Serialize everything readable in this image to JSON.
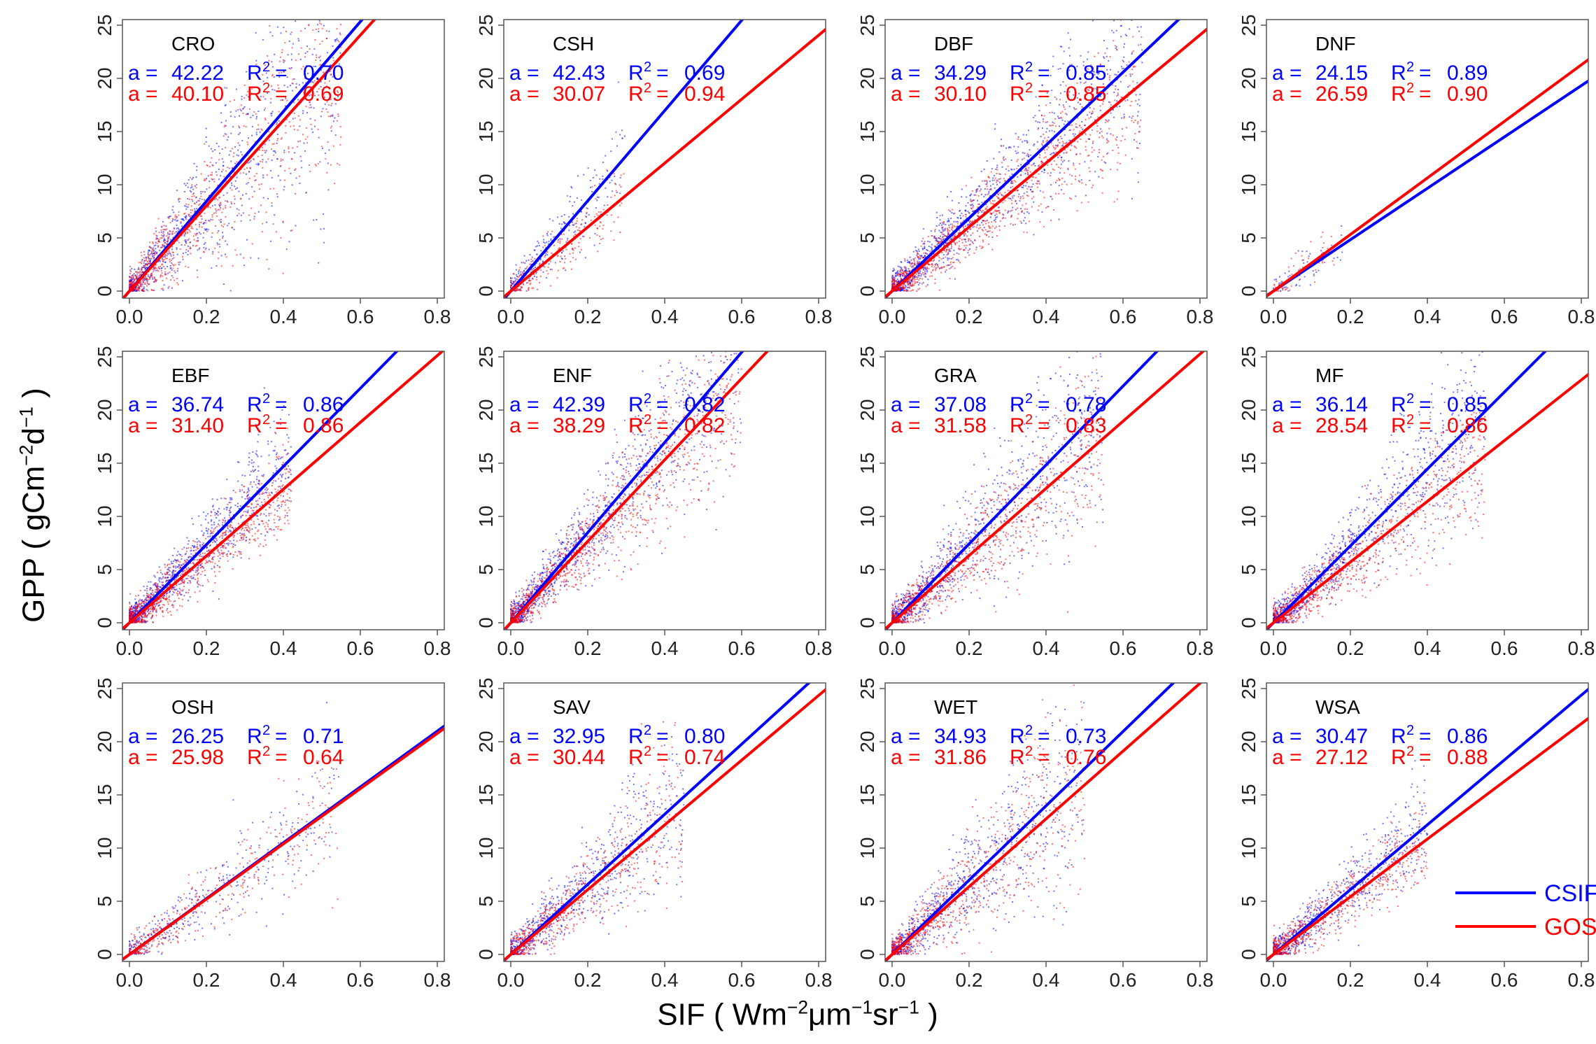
{
  "figure": {
    "ylabel": {
      "prefix": "GPP ( gCm",
      "exp1": "−2",
      "mid": "d",
      "exp2": "−1",
      "suffix": " )"
    },
    "xlabel": {
      "prefix": "SIF ( Wm",
      "exp1": "−2",
      "mid1": "μm",
      "exp2": "−1",
      "mid2": "sr",
      "exp3": "−1",
      "suffix": " )"
    }
  },
  "colors": {
    "csif": "#0000ff",
    "gosif": "#ff0000",
    "frame": "#555555",
    "text": "#000000"
  },
  "legend": {
    "placement": "bottom-right of WSA panel",
    "items": [
      {
        "label": "CSIF",
        "color": "#0000ff"
      },
      {
        "label": "GOSIF",
        "color": "#ff0000"
      }
    ]
  },
  "stat_labels": {
    "slope": "a =",
    "r2_prefix": "R",
    "r2_exp": "2",
    "r2_eq": "="
  },
  "chart_data": [
    {
      "type": "scatter",
      "title": "CRO",
      "xlim": [
        0,
        0.8
      ],
      "ylim": [
        0,
        25
      ],
      "xticks": [
        "0.0",
        "0.2",
        "0.4",
        "0.6",
        "0.8"
      ],
      "yticks": [
        "0",
        "5",
        "10",
        "15",
        "20",
        "25"
      ],
      "series": [
        {
          "name": "CSIF",
          "slope": 42.22,
          "r2": 0.7,
          "a_text": "42.22",
          "r2_text": "0.70"
        },
        {
          "name": "GOSIF",
          "slope": 40.1,
          "r2": 0.69,
          "a_text": "40.10",
          "r2_text": "0.69"
        }
      ]
    },
    {
      "type": "scatter",
      "title": "CSH",
      "xlim": [
        0,
        0.8
      ],
      "ylim": [
        0,
        25
      ],
      "xticks": [
        "0.0",
        "0.2",
        "0.4",
        "0.6",
        "0.8"
      ],
      "yticks": [
        "0",
        "5",
        "10",
        "15",
        "20",
        "25"
      ],
      "series": [
        {
          "name": "CSIF",
          "slope": 42.43,
          "r2": 0.69,
          "a_text": "42.43",
          "r2_text": "0.69"
        },
        {
          "name": "GOSIF",
          "slope": 30.07,
          "r2": 0.94,
          "a_text": "30.07",
          "r2_text": "0.94"
        }
      ]
    },
    {
      "type": "scatter",
      "title": "DBF",
      "xlim": [
        0,
        0.8
      ],
      "ylim": [
        0,
        25
      ],
      "xticks": [
        "0.0",
        "0.2",
        "0.4",
        "0.6",
        "0.8"
      ],
      "yticks": [
        "0",
        "5",
        "10",
        "15",
        "20",
        "25"
      ],
      "series": [
        {
          "name": "CSIF",
          "slope": 34.29,
          "r2": 0.85,
          "a_text": "34.29",
          "r2_text": "0.85"
        },
        {
          "name": "GOSIF",
          "slope": 30.1,
          "r2": 0.85,
          "a_text": "30.10",
          "r2_text": "0.85"
        }
      ]
    },
    {
      "type": "scatter",
      "title": "DNF",
      "xlim": [
        0,
        0.8
      ],
      "ylim": [
        0,
        25
      ],
      "xticks": [
        "0.0",
        "0.2",
        "0.4",
        "0.6",
        "0.8"
      ],
      "yticks": [
        "0",
        "5",
        "10",
        "15",
        "20",
        "25"
      ],
      "series": [
        {
          "name": "CSIF",
          "slope": 24.15,
          "r2": 0.89,
          "a_text": "24.15",
          "r2_text": "0.89"
        },
        {
          "name": "GOSIF",
          "slope": 26.59,
          "r2": 0.9,
          "a_text": "26.59",
          "r2_text": "0.90"
        }
      ]
    },
    {
      "type": "scatter",
      "title": "EBF",
      "xlim": [
        0,
        0.8
      ],
      "ylim": [
        0,
        25
      ],
      "xticks": [
        "0.0",
        "0.2",
        "0.4",
        "0.6",
        "0.8"
      ],
      "yticks": [
        "0",
        "5",
        "10",
        "15",
        "20",
        "25"
      ],
      "series": [
        {
          "name": "CSIF",
          "slope": 36.74,
          "r2": 0.86,
          "a_text": "36.74",
          "r2_text": "0.86"
        },
        {
          "name": "GOSIF",
          "slope": 31.4,
          "r2": 0.86,
          "a_text": "31.40",
          "r2_text": "0.86"
        }
      ]
    },
    {
      "type": "scatter",
      "title": "ENF",
      "xlim": [
        0,
        0.8
      ],
      "ylim": [
        0,
        25
      ],
      "xticks": [
        "0.0",
        "0.2",
        "0.4",
        "0.6",
        "0.8"
      ],
      "yticks": [
        "0",
        "5",
        "10",
        "15",
        "20",
        "25"
      ],
      "series": [
        {
          "name": "CSIF",
          "slope": 42.39,
          "r2": 0.82,
          "a_text": "42.39",
          "r2_text": "0.82"
        },
        {
          "name": "GOSIF",
          "slope": 38.29,
          "r2": 0.82,
          "a_text": "38.29",
          "r2_text": "0.82"
        }
      ]
    },
    {
      "type": "scatter",
      "title": "GRA",
      "xlim": [
        0,
        0.8
      ],
      "ylim": [
        0,
        25
      ],
      "xticks": [
        "0.0",
        "0.2",
        "0.4",
        "0.6",
        "0.8"
      ],
      "yticks": [
        "0",
        "5",
        "10",
        "15",
        "20",
        "25"
      ],
      "series": [
        {
          "name": "CSIF",
          "slope": 37.08,
          "r2": 0.78,
          "a_text": "37.08",
          "r2_text": "0.78"
        },
        {
          "name": "GOSIF",
          "slope": 31.58,
          "r2": 0.83,
          "a_text": "31.58",
          "r2_text": "0.83"
        }
      ]
    },
    {
      "type": "scatter",
      "title": "MF",
      "xlim": [
        0,
        0.8
      ],
      "ylim": [
        0,
        25
      ],
      "xticks": [
        "0.0",
        "0.2",
        "0.4",
        "0.6",
        "0.8"
      ],
      "yticks": [
        "0",
        "5",
        "10",
        "15",
        "20",
        "25"
      ],
      "series": [
        {
          "name": "CSIF",
          "slope": 36.14,
          "r2": 0.85,
          "a_text": "36.14",
          "r2_text": "0.85"
        },
        {
          "name": "GOSIF",
          "slope": 28.54,
          "r2": 0.86,
          "a_text": "28.54",
          "r2_text": "0.86"
        }
      ]
    },
    {
      "type": "scatter",
      "title": "OSH",
      "xlim": [
        0,
        0.8
      ],
      "ylim": [
        0,
        25
      ],
      "xticks": [
        "0.0",
        "0.2",
        "0.4",
        "0.6",
        "0.8"
      ],
      "yticks": [
        "0",
        "5",
        "10",
        "15",
        "20",
        "25"
      ],
      "series": [
        {
          "name": "CSIF",
          "slope": 26.25,
          "r2": 0.71,
          "a_text": "26.25",
          "r2_text": "0.71"
        },
        {
          "name": "GOSIF",
          "slope": 25.98,
          "r2": 0.64,
          "a_text": "25.98",
          "r2_text": "0.64"
        }
      ]
    },
    {
      "type": "scatter",
      "title": "SAV",
      "xlim": [
        0,
        0.8
      ],
      "ylim": [
        0,
        25
      ],
      "xticks": [
        "0.0",
        "0.2",
        "0.4",
        "0.6",
        "0.8"
      ],
      "yticks": [
        "0",
        "5",
        "10",
        "15",
        "20",
        "25"
      ],
      "series": [
        {
          "name": "CSIF",
          "slope": 32.95,
          "r2": 0.8,
          "a_text": "32.95",
          "r2_text": "0.80"
        },
        {
          "name": "GOSIF",
          "slope": 30.44,
          "r2": 0.74,
          "a_text": "30.44",
          "r2_text": "0.74"
        }
      ]
    },
    {
      "type": "scatter",
      "title": "WET",
      "xlim": [
        0,
        0.8
      ],
      "ylim": [
        0,
        25
      ],
      "xticks": [
        "0.0",
        "0.2",
        "0.4",
        "0.6",
        "0.8"
      ],
      "yticks": [
        "0",
        "5",
        "10",
        "15",
        "20",
        "25"
      ],
      "series": [
        {
          "name": "CSIF",
          "slope": 34.93,
          "r2": 0.73,
          "a_text": "34.93",
          "r2_text": "0.73"
        },
        {
          "name": "GOSIF",
          "slope": 31.86,
          "r2": 0.76,
          "a_text": "31.86",
          "r2_text": "0.76"
        }
      ]
    },
    {
      "type": "scatter",
      "title": "WSA",
      "xlim": [
        0,
        0.8
      ],
      "ylim": [
        0,
        25
      ],
      "xticks": [
        "0.0",
        "0.2",
        "0.4",
        "0.6",
        "0.8"
      ],
      "yticks": [
        "0",
        "5",
        "10",
        "15",
        "20",
        "25"
      ],
      "series": [
        {
          "name": "CSIF",
          "slope": 30.47,
          "r2": 0.86,
          "a_text": "30.47",
          "r2_text": "0.86"
        },
        {
          "name": "GOSIF",
          "slope": 27.12,
          "r2": 0.88,
          "a_text": "27.12",
          "r2_text": "0.88"
        }
      ]
    }
  ]
}
